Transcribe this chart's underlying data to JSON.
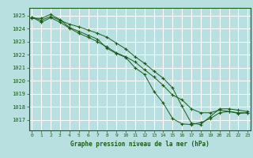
{
  "title": "Graphe pression niveau de la mer (hPa)",
  "bg_color": "#b8e0e0",
  "grid_color": "#ffffff",
  "line_color": "#1a5c1a",
  "marker_color": "#1a5c1a",
  "xlim": [
    -0.3,
    23.3
  ],
  "ylim": [
    1016.2,
    1025.6
  ],
  "yticks": [
    1017,
    1018,
    1019,
    1020,
    1021,
    1022,
    1023,
    1024,
    1025
  ],
  "xticks": [
    0,
    1,
    2,
    3,
    4,
    5,
    6,
    7,
    8,
    9,
    10,
    11,
    12,
    13,
    14,
    15,
    16,
    17,
    18,
    19,
    20,
    21,
    22,
    23
  ],
  "series": [
    [
      1024.8,
      1024.8,
      1025.1,
      1024.7,
      1024.1,
      1023.8,
      1023.5,
      1023.2,
      1022.5,
      1022.1,
      1021.8,
      1021.0,
      1020.5,
      1019.2,
      1018.3,
      1017.1,
      1016.7,
      1016.65,
      1016.8,
      1017.1,
      1017.55,
      1017.65,
      1017.5,
      1017.55
    ],
    [
      1024.9,
      1024.5,
      1024.85,
      1024.5,
      1024.05,
      1023.65,
      1023.35,
      1023.0,
      1022.6,
      1022.15,
      1021.85,
      1021.45,
      1020.85,
      1020.3,
      1019.65,
      1018.9,
      1018.55,
      1017.85,
      1017.55,
      1017.55,
      1017.75,
      1017.65,
      1017.55,
      1017.55
    ],
    [
      1024.9,
      1024.65,
      1024.95,
      1024.65,
      1024.35,
      1024.15,
      1023.9,
      1023.65,
      1023.35,
      1022.9,
      1022.45,
      1021.85,
      1021.35,
      1020.75,
      1020.2,
      1019.45,
      1018.05,
      1016.75,
      1016.65,
      1017.25,
      1017.85,
      1017.85,
      1017.75,
      1017.65
    ]
  ]
}
